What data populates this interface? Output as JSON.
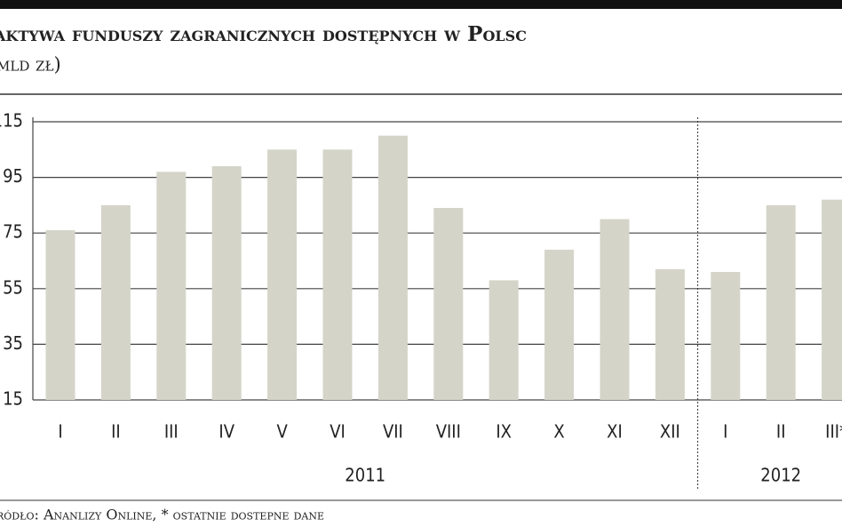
{
  "chart_data": {
    "type": "bar",
    "title": "aktywa funduszy zagranicznych dostępnych w Polsc",
    "subtitle": "mld zł)",
    "categories": [
      "I",
      "II",
      "III",
      "IV",
      "V",
      "VI",
      "VII",
      "VIII",
      "IX",
      "X",
      "XI",
      "XII",
      "I",
      "II",
      "III*"
    ],
    "values": [
      76,
      85,
      97,
      99,
      105,
      105,
      110,
      84,
      58,
      69,
      80,
      62,
      61,
      85,
      87
    ],
    "groups": [
      "2011",
      "2012"
    ],
    "color": "#d5d4c9",
    "ylim": [
      15,
      115
    ],
    "yticks": [
      15,
      35,
      55,
      75,
      95,
      115
    ],
    "grid": true,
    "source": "ródło: Ananlizy Online, * ostatnie dostepne dane"
  }
}
